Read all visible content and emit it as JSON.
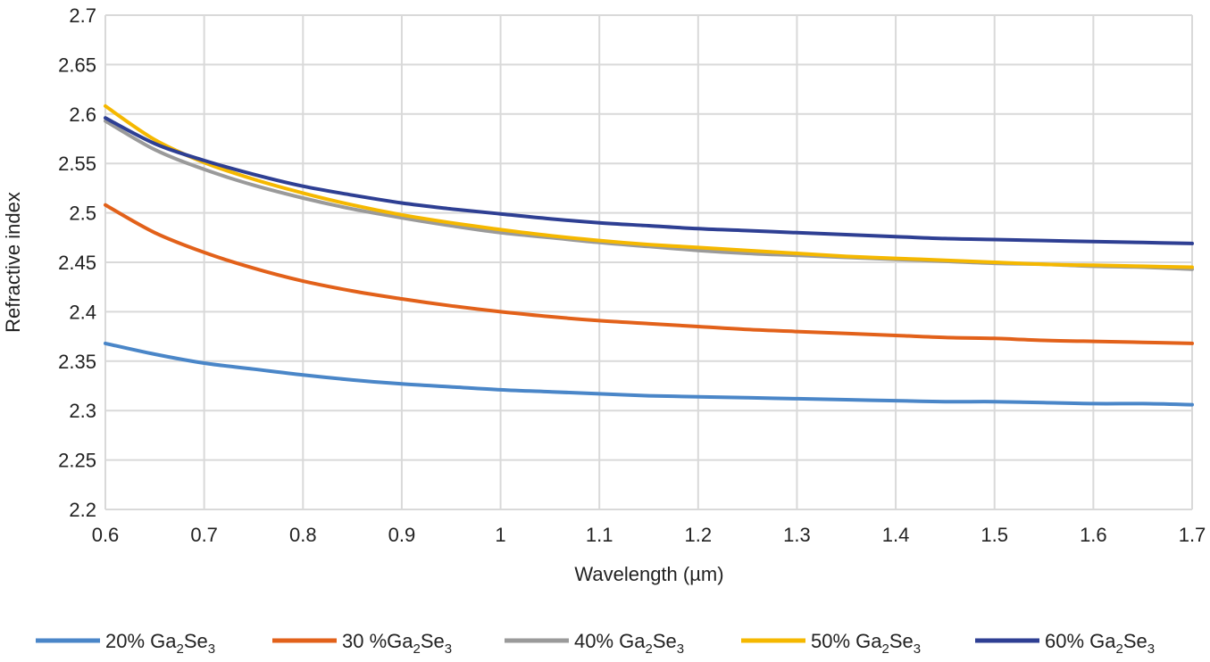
{
  "chart_data": {
    "type": "line",
    "title": "",
    "xlabel": "Wavelength (µm)",
    "ylabel": "Refractive index",
    "xlim": [
      0.6,
      1.7
    ],
    "ylim": [
      2.2,
      2.7
    ],
    "x_ticks": [
      "0.6",
      "0.7",
      "0.8",
      "0.9",
      "1",
      "1.1",
      "1.2",
      "1.3",
      "1.4",
      "1.5",
      "1.6",
      "1.7"
    ],
    "y_ticks": [
      "2.2",
      "2.25",
      "2.3",
      "2.35",
      "2.4",
      "2.45",
      "2.5",
      "2.55",
      "2.6",
      "2.65",
      "2.7"
    ],
    "grid": true,
    "legend_position": "bottom",
    "x": [
      0.6,
      0.65,
      0.7,
      0.75,
      0.8,
      0.85,
      0.9,
      0.95,
      1.0,
      1.05,
      1.1,
      1.15,
      1.2,
      1.25,
      1.3,
      1.35,
      1.4,
      1.45,
      1.5,
      1.55,
      1.6,
      1.65,
      1.7
    ],
    "series": [
      {
        "name": "20% Ga2Se3",
        "legend_parts": {
          "pre": "20% Ga",
          "sub1": "2",
          "mid": "Se",
          "sub2": "3"
        },
        "color": "#4A86C8",
        "values": [
          2.368,
          2.357,
          2.348,
          2.342,
          2.336,
          2.331,
          2.327,
          2.324,
          2.321,
          2.319,
          2.317,
          2.315,
          2.314,
          2.313,
          2.312,
          2.311,
          2.31,
          2.309,
          2.309,
          2.308,
          2.307,
          2.307,
          2.306
        ]
      },
      {
        "name": "30 %Ga2Se3",
        "legend_parts": {
          "pre": "30 %Ga",
          "sub1": "2",
          "mid": "Se",
          "sub2": "3"
        },
        "color": "#E2611A",
        "values": [
          2.508,
          2.48,
          2.46,
          2.444,
          2.431,
          2.421,
          2.413,
          2.406,
          2.4,
          2.395,
          2.391,
          2.388,
          2.385,
          2.382,
          2.38,
          2.378,
          2.376,
          2.374,
          2.373,
          2.371,
          2.37,
          2.369,
          2.368
        ]
      },
      {
        "name": "40% Ga2Se3",
        "legend_parts": {
          "pre": "40% Ga",
          "sub1": "2",
          "mid": "Se",
          "sub2": "3"
        },
        "color": "#9A9A9A",
        "values": [
          2.593,
          2.564,
          2.544,
          2.528,
          2.515,
          2.504,
          2.495,
          2.487,
          2.48,
          2.475,
          2.47,
          2.466,
          2.462,
          2.459,
          2.457,
          2.455,
          2.453,
          2.451,
          2.449,
          2.448,
          2.446,
          2.445,
          2.443
        ]
      },
      {
        "name": "50% Ga2Se3",
        "legend_parts": {
          "pre": "50% Ga",
          "sub1": "2",
          "mid": "Se",
          "sub2": "3"
        },
        "color": "#F5B800",
        "values": [
          2.608,
          2.574,
          2.551,
          2.534,
          2.52,
          2.508,
          2.498,
          2.49,
          2.483,
          2.477,
          2.472,
          2.468,
          2.465,
          2.462,
          2.459,
          2.456,
          2.454,
          2.452,
          2.45,
          2.448,
          2.447,
          2.446,
          2.445
        ]
      },
      {
        "name": "60% Ga2Se3",
        "legend_parts": {
          "pre": "60% Ga",
          "sub1": "2",
          "mid": "Se",
          "sub2": "3"
        },
        "color": "#2E3F93",
        "values": [
          2.596,
          2.57,
          2.553,
          2.539,
          2.527,
          2.518,
          2.51,
          2.504,
          2.499,
          2.494,
          2.49,
          2.487,
          2.484,
          2.482,
          2.48,
          2.478,
          2.476,
          2.474,
          2.473,
          2.472,
          2.471,
          2.47,
          2.469
        ]
      }
    ]
  },
  "colors": {
    "gridline": "#D9D9D9",
    "axis_text": "#222222"
  }
}
